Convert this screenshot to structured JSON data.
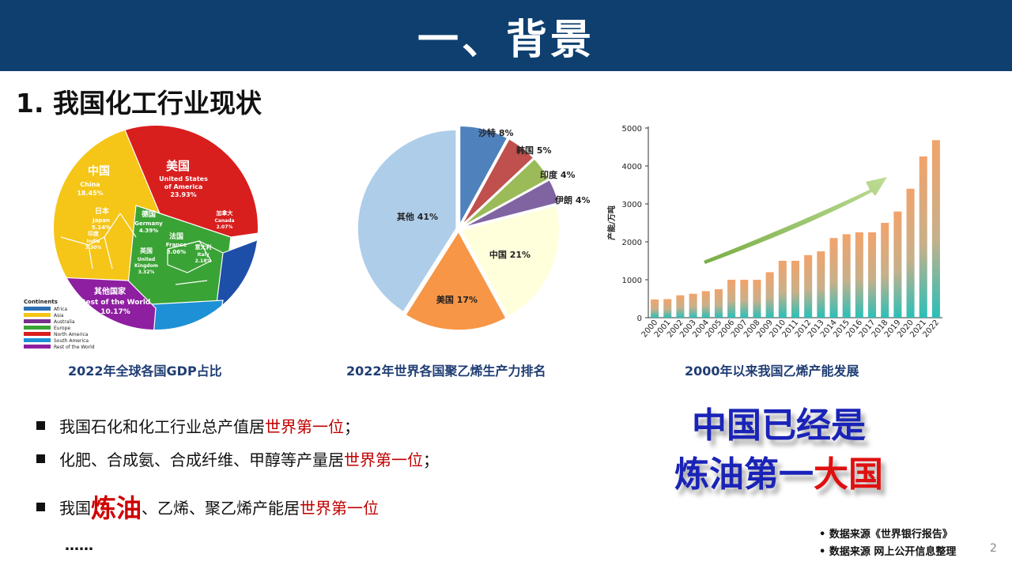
{
  "header": {
    "title": "一、背景"
  },
  "section_title": "1. 我国化工行业现状",
  "figures": {
    "gdp": {
      "caption": "2022年全球各国GDP占比",
      "regions": [
        {
          "cn": "美国",
          "en": "United States of America",
          "pct": "23.93%"
        },
        {
          "cn": "中国",
          "en": "China",
          "pct": "18.45%"
        },
        {
          "cn": "其他国家",
          "en": "Rest of the World",
          "pct": "10.17%"
        },
        {
          "cn": "日本",
          "en": "Japan",
          "pct": "5.14%"
        },
        {
          "cn": "德国",
          "en": "Germany",
          "pct": "4.39%"
        },
        {
          "cn": "法国",
          "en": "France",
          "pct": "3.06%"
        },
        {
          "cn": "英国",
          "en": "United Kingdom",
          "pct": "3.32%"
        },
        {
          "cn": "印度",
          "en": "India",
          "pct": "3.30%"
        },
        {
          "cn": "加拿大",
          "en": "Canada",
          "pct": "2.07%"
        },
        {
          "cn": "意大利",
          "en": "Italy",
          "pct": "2.18%"
        }
      ],
      "continents_title": "Continents",
      "continents": [
        {
          "name": "Africa",
          "color": "#2f6fb5"
        },
        {
          "name": "Asia",
          "color": "#f5c518"
        },
        {
          "name": "Australia",
          "color": "#7b2d8e"
        },
        {
          "name": "Europe",
          "color": "#3aa335"
        },
        {
          "name": "North America",
          "color": "#d91e1e"
        },
        {
          "name": "South America",
          "color": "#1e90d6"
        },
        {
          "name": "Rest of the World",
          "color": "#8e1fa0"
        }
      ]
    },
    "pe": {
      "caption": "2022年世界各国聚乙烯生产力排名"
    },
    "ethylene": {
      "caption": "2000年以来我国乙烯产能发展"
    }
  },
  "chart_data": [
    {
      "type": "pie",
      "title": "",
      "categories": [
        "沙特",
        "韩国",
        "印度",
        "伊朗",
        "中国",
        "美国",
        "其他"
      ],
      "values": [
        8,
        5,
        4,
        4,
        21,
        17,
        41
      ],
      "labels": [
        "沙特 8%",
        "韩国 5%",
        "印度 4%",
        "伊朗 4%",
        "中国 21%",
        "美国 17%",
        "其他 41%"
      ],
      "colors": [
        "#4f81bd",
        "#c0504d",
        "#9bbb59",
        "#8064a2",
        "#ffffdc",
        "#f79646",
        "#aecde9"
      ]
    },
    {
      "type": "bar",
      "title": "",
      "xlabel": "",
      "ylabel": "产能/万吨",
      "categories": [
        "2000",
        "2001",
        "2002",
        "2003",
        "2004",
        "2005",
        "2006",
        "2007",
        "2008",
        "2009",
        "2010",
        "2011",
        "2012",
        "2013",
        "2014",
        "2015",
        "2016",
        "2017",
        "2018",
        "2019",
        "2020",
        "2021",
        "2022"
      ],
      "values": [
        480,
        490,
        590,
        630,
        700,
        750,
        1000,
        1000,
        1000,
        1200,
        1500,
        1500,
        1650,
        1750,
        2100,
        2200,
        2250,
        2250,
        2500,
        2800,
        3400,
        4250,
        4680
      ],
      "ylim": [
        0,
        5000
      ],
      "yticks": [
        0,
        1000,
        2000,
        3000,
        4000,
        5000
      ],
      "grid": false
    }
  ],
  "bullets": [
    {
      "pre": "我国石化和化工行业总产值居",
      "hl": "世界第一位",
      "post": "；"
    },
    {
      "pre": "化肥、合成氨、合成纤维、甲醇等产量居",
      "hl": "世界第一位",
      "post": "；"
    },
    {
      "pre": "我国",
      "big": "炼油",
      "mid": "、乙烯、聚乙烯产能居",
      "hl": "世界第一位",
      "post": ""
    }
  ],
  "ellipsis": "……",
  "callout": {
    "line1": "中国已经是",
    "line2_a": "炼油第一",
    "line2_b": "大国"
  },
  "sources": [
    "• 数据来源《世界银行报告》",
    "• 数据来源  网上公开信息整理"
  ],
  "page_number": "2"
}
